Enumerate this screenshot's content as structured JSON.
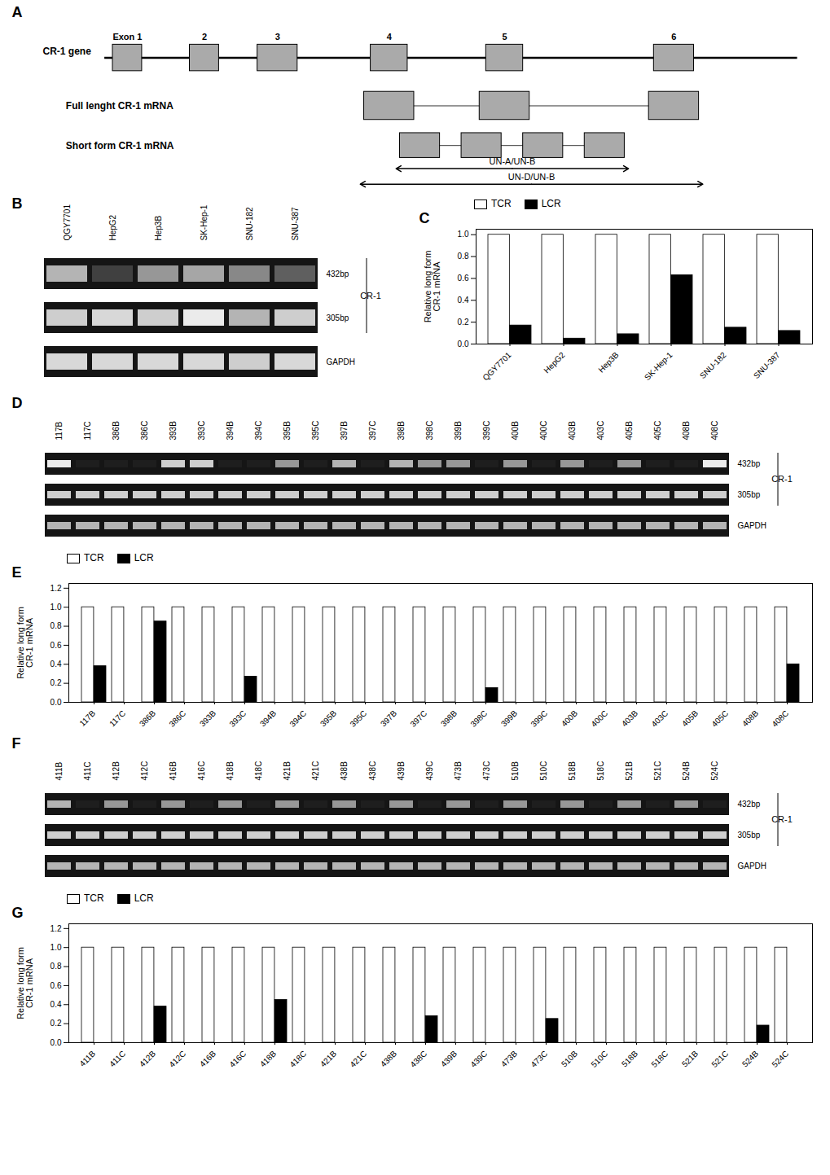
{
  "chart_data": [
    {
      "type": "diagram",
      "title": "A",
      "categories": [
        "Exon 1",
        "2",
        "3",
        "4",
        "5",
        "6"
      ],
      "annotations": [
        "CR-1 gene",
        "Full lenght CR-1 mRNA",
        "Short form CR-1 mRNA",
        "UN-A/UN-B",
        "UN-D/UN-B"
      ]
    },
    {
      "type": "heatmap",
      "title": "B",
      "categories": [
        "QGY7701",
        "HepG2",
        "Hep3B",
        "SK-Hep-1",
        "SNU-182",
        "SNU-387"
      ],
      "rows": [
        "432bp",
        "305bp",
        "GAPDH"
      ],
      "values": [
        [
          0.6,
          0.2,
          0.5,
          0.55,
          0.45,
          0.3
        ],
        [
          0.7,
          0.75,
          0.7,
          0.85,
          0.6,
          0.7
        ],
        [
          0.75,
          0.75,
          0.75,
          0.75,
          0.7,
          0.75
        ]
      ],
      "annotations": [
        "CR-1"
      ]
    },
    {
      "type": "bar",
      "title": "C",
      "categories": [
        "QGY7701",
        "HepG2",
        "Hep3B",
        "SK-Hep-1",
        "SNU-182",
        "SNU-387"
      ],
      "series": [
        {
          "name": "TCR",
          "color": "#ffffff",
          "values": [
            1.0,
            1.0,
            1.0,
            1.0,
            1.0,
            1.0
          ]
        },
        {
          "name": "LCR",
          "color": "#000000",
          "values": [
            0.17,
            0.05,
            0.09,
            0.63,
            0.15,
            0.12
          ]
        }
      ],
      "ylabel": "Relative long form\nCR-1 mRNA",
      "ylim": [
        0,
        1.05
      ],
      "yticks": [
        {
          "value": 0,
          "label": "0.0"
        },
        {
          "value": 0.2,
          "label": "0.2"
        },
        {
          "value": 0.4,
          "label": "0.4"
        },
        {
          "value": 0.6,
          "label": "0.6"
        },
        {
          "value": 0.8,
          "label": "0.8"
        },
        {
          "value": 1,
          "label": "1.0"
        }
      ],
      "legend": "top"
    },
    {
      "type": "heatmap",
      "title": "D",
      "categories": [
        "117B",
        "117C",
        "386B",
        "386C",
        "393B",
        "393C",
        "394B",
        "394C",
        "395B",
        "395C",
        "397B",
        "397C",
        "398B",
        "398C",
        "399B",
        "399C",
        "400B",
        "400C",
        "403B",
        "403C",
        "405B",
        "405C",
        "408B",
        "408C"
      ],
      "rows": [
        "432bp",
        "305bp",
        "GAPDH"
      ],
      "values": [
        [
          0.85,
          0.1,
          0.1,
          0.1,
          0.7,
          0.7,
          0.1,
          0.1,
          0.5,
          0.1,
          0.6,
          0.1,
          0.6,
          0.5,
          0.5,
          0.1,
          0.5,
          0.1,
          0.5,
          0.1,
          0.5,
          0.1,
          0.1,
          0.85
        ],
        [
          0.7,
          0.7,
          0.7,
          0.7,
          0.7,
          0.7,
          0.7,
          0.7,
          0.7,
          0.7,
          0.7,
          0.7,
          0.7,
          0.7,
          0.7,
          0.7,
          0.7,
          0.7,
          0.7,
          0.7,
          0.7,
          0.7,
          0.7,
          0.7
        ],
        [
          0.6,
          0.6,
          0.6,
          0.6,
          0.6,
          0.6,
          0.6,
          0.6,
          0.6,
          0.6,
          0.6,
          0.6,
          0.6,
          0.6,
          0.6,
          0.6,
          0.6,
          0.6,
          0.6,
          0.6,
          0.6,
          0.6,
          0.6,
          0.6
        ]
      ],
      "annotations": [
        "CR-1"
      ]
    },
    {
      "type": "bar",
      "title": "E",
      "categories": [
        "117B",
        "117C",
        "386B",
        "386C",
        "393B",
        "393C",
        "394B",
        "394C",
        "395B",
        "395C",
        "397B",
        "397C",
        "398B",
        "398C",
        "399B",
        "399C",
        "400B",
        "400C",
        "403B",
        "403C",
        "405B",
        "405C",
        "408B",
        "408C"
      ],
      "series": [
        {
          "name": "TCR",
          "color": "#ffffff",
          "values": [
            1.0,
            1.0,
            1.0,
            1.0,
            1.0,
            1.0,
            1.0,
            1.0,
            1.0,
            1.0,
            1.0,
            1.0,
            1.0,
            1.0,
            1.0,
            1.0,
            1.0,
            1.0,
            1.0,
            1.0,
            1.0,
            1.0,
            1.0,
            1.0
          ]
        },
        {
          "name": "LCR",
          "color": "#000000",
          "values": [
            0.38,
            0.0,
            0.85,
            0.0,
            0.0,
            0.27,
            0.0,
            0.0,
            0.0,
            0.0,
            0.0,
            0.0,
            0.0,
            0.15,
            0.0,
            0.0,
            0.0,
            0.0,
            0.0,
            0.0,
            0.0,
            0.0,
            0.0,
            0.4
          ]
        }
      ],
      "ylabel": "Relative long form\nCR-1 mRNA",
      "ylim": [
        0,
        1.25
      ],
      "yticks": [
        {
          "value": 0,
          "label": "0.0"
        },
        {
          "value": 0.2,
          "label": "0.2"
        },
        {
          "value": 0.4,
          "label": "0.4"
        },
        {
          "value": 0.6,
          "label": "0.6"
        },
        {
          "value": 0.8,
          "label": "0.8"
        },
        {
          "value": 1,
          "label": "1.0"
        },
        {
          "value": 1.2,
          "label": "1.2"
        }
      ],
      "legend": "top"
    },
    {
      "type": "heatmap",
      "title": "F",
      "categories": [
        "411B",
        "411C",
        "412B",
        "412C",
        "416B",
        "416C",
        "418B",
        "418C",
        "421B",
        "421C",
        "438B",
        "438C",
        "439B",
        "439C",
        "473B",
        "473C",
        "510B",
        "510C",
        "518B",
        "518C",
        "521B",
        "521C",
        "524B",
        "524C"
      ],
      "rows": [
        "432bp",
        "305bp",
        "GAPDH"
      ],
      "values": [
        [
          0.6,
          0.1,
          0.5,
          0.1,
          0.5,
          0.1,
          0.5,
          0.1,
          0.5,
          0.1,
          0.5,
          0.1,
          0.5,
          0.1,
          0.5,
          0.1,
          0.5,
          0.1,
          0.5,
          0.1,
          0.5,
          0.1,
          0.5,
          0.1
        ],
        [
          0.7,
          0.7,
          0.7,
          0.7,
          0.7,
          0.7,
          0.7,
          0.7,
          0.7,
          0.7,
          0.7,
          0.7,
          0.7,
          0.7,
          0.7,
          0.7,
          0.7,
          0.7,
          0.7,
          0.7,
          0.7,
          0.7,
          0.7,
          0.7
        ],
        [
          0.6,
          0.6,
          0.6,
          0.6,
          0.6,
          0.6,
          0.6,
          0.6,
          0.6,
          0.6,
          0.6,
          0.6,
          0.6,
          0.6,
          0.6,
          0.6,
          0.6,
          0.6,
          0.6,
          0.6,
          0.6,
          0.6,
          0.6,
          0.6
        ]
      ],
      "annotations": [
        "CR-1"
      ]
    },
    {
      "type": "bar",
      "title": "G",
      "categories": [
        "411B",
        "411C",
        "412B",
        "412C",
        "416B",
        "416C",
        "418B",
        "418C",
        "421B",
        "421C",
        "438B",
        "438C",
        "439B",
        "439C",
        "473B",
        "473C",
        "510B",
        "510C",
        "518B",
        "518C",
        "521B",
        "521C",
        "524B",
        "524C"
      ],
      "series": [
        {
          "name": "TCR",
          "color": "#ffffff",
          "values": [
            1.0,
            1.0,
            1.0,
            1.0,
            1.0,
            1.0,
            1.0,
            1.0,
            1.0,
            1.0,
            1.0,
            1.0,
            1.0,
            1.0,
            1.0,
            1.0,
            1.0,
            1.0,
            1.0,
            1.0,
            1.0,
            1.0,
            1.0,
            1.0
          ]
        },
        {
          "name": "LCR",
          "color": "#000000",
          "values": [
            0.0,
            0.0,
            0.38,
            0.0,
            0.0,
            0.0,
            0.45,
            0.0,
            0.0,
            0.0,
            0.0,
            0.28,
            0.0,
            0.0,
            0.0,
            0.25,
            0.0,
            0.0,
            0.0,
            0.0,
            0.0,
            0.0,
            0.18,
            0.0
          ]
        }
      ],
      "ylabel": "Relative long form\nCR-1 mRNA",
      "ylim": [
        0,
        1.25
      ],
      "yticks": [
        {
          "value": 0,
          "label": "0.0"
        },
        {
          "value": 0.2,
          "label": "0.2"
        },
        {
          "value": 0.4,
          "label": "0.4"
        },
        {
          "value": 0.6,
          "label": "0.6"
        },
        {
          "value": 0.8,
          "label": "0.8"
        },
        {
          "value": 1,
          "label": "1.0"
        },
        {
          "value": 1.2,
          "label": "1.2"
        }
      ],
      "legend": "top"
    }
  ]
}
